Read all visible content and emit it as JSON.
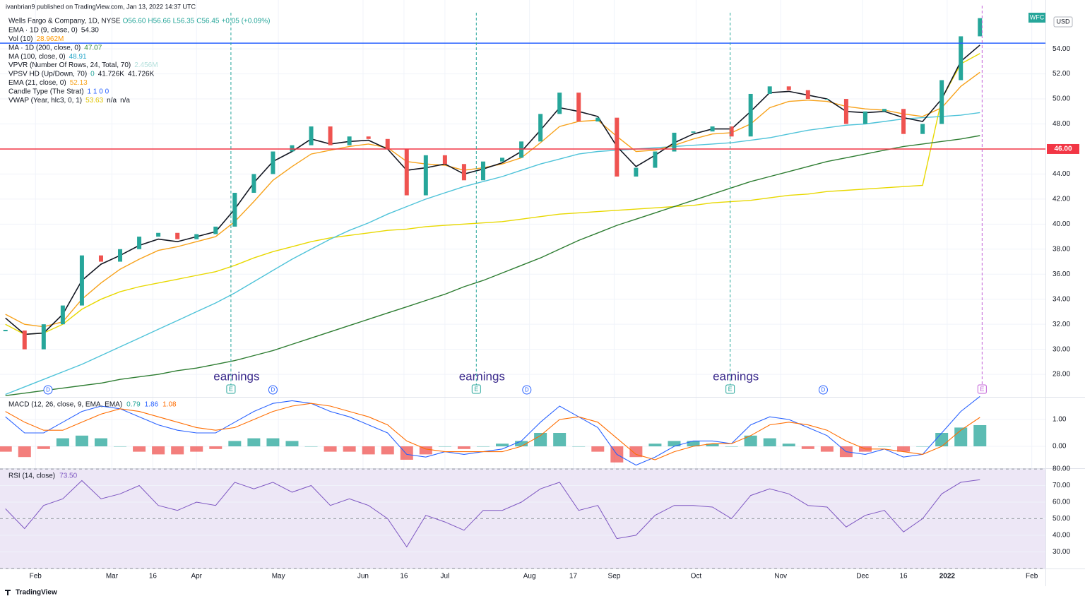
{
  "header": {
    "published": "ivanbrian9 published on TradingView.com, Jan 13, 2022 14:37 UTC",
    "footer": "TradingView"
  },
  "symbol": {
    "name": "Wells Fargo & Company, 1D, NYSE",
    "ohlc": [
      "O56.60",
      "H56.66",
      "L56.35",
      "C56.45",
      "+0.05 (+0.09%)"
    ],
    "ticker": "WFC",
    "currency": "USD"
  },
  "legend": [
    {
      "label": "EMA · 1D (9, close, 0)",
      "values": [
        "54.30"
      ],
      "color": "#131722"
    },
    {
      "label": "Vol (10)",
      "values": [
        "28.962M"
      ],
      "color": "#ff9800"
    },
    {
      "label": "MA · 1D (200, close, 0)",
      "values": [
        "47.07"
      ],
      "color": "#388e3c"
    },
    {
      "label": "MA (100, close, 0)",
      "values": [
        "48.91"
      ],
      "color": "#26a6c9"
    },
    {
      "label": "VPVR (Number Of Rows, 24, Total, 70)",
      "values": [
        "2.456M"
      ],
      "color": "#b2dfdb"
    },
    {
      "label": "VPSV HD (Up/Down, 70)",
      "values": [
        "0",
        "41.726K",
        "41.726K"
      ],
      "color": "#26a69a"
    },
    {
      "label": "EMA (21, close, 0)",
      "values": [
        "52.13"
      ],
      "color": "#f7a21b"
    },
    {
      "label": "Candle Type (The Strat)",
      "values": [
        "1 1 0 0"
      ],
      "color": "#2962ff"
    },
    {
      "label": "VWAP (Year, hlc3, 0, 1)",
      "values": [
        "53.63",
        "n/a",
        "n/a"
      ],
      "color": "#e0c400"
    }
  ],
  "chart_data": [
    {
      "type": "candlestick",
      "x": [
        20,
        27,
        34,
        41,
        48,
        55,
        62,
        69,
        76,
        83,
        90,
        97,
        104,
        111,
        118,
        125,
        132,
        139,
        146,
        153,
        160,
        167,
        174,
        181,
        188,
        195,
        202,
        209,
        216,
        223,
        230,
        237,
        244,
        251,
        258,
        265,
        272,
        279,
        286,
        293,
        300,
        307,
        314,
        321,
        328,
        335,
        342,
        349,
        356,
        363,
        370,
        377
      ],
      "values": [
        31.5,
        30.0,
        32.0,
        33.5,
        37.5,
        37.0,
        38.0,
        39.0,
        39.3,
        38.8,
        39.2,
        39.8,
        42.5,
        44.0,
        45.8,
        46.3,
        47.8,
        46.3,
        47.0,
        46.8,
        46.0,
        42.3,
        45.5,
        44.8,
        43.5,
        45.0,
        45.3,
        46.6,
        48.8,
        50.5,
        48.2,
        48.5,
        43.8,
        44.5,
        45.8,
        47.3,
        47.4,
        47.8,
        47.0,
        50.4,
        51.0,
        50.7,
        50.0,
        50.0,
        48.0,
        49.0,
        49.2,
        47.2,
        48.0,
        51.5,
        55.0,
        56.45
      ],
      "up_color": "#26a69a",
      "down_color": "#ef5350",
      "series": [
        {
          "color": "#e8d800",
          "values": [
            32.0,
            31.2,
            31.3,
            32.0,
            33.2,
            34.0,
            34.6,
            35.0,
            35.3,
            35.6,
            35.9,
            36.2,
            36.7,
            37.3,
            37.8,
            38.2,
            38.6,
            38.9,
            39.1,
            39.3,
            39.5,
            39.6,
            39.8,
            39.9,
            40.0,
            40.1,
            40.2,
            40.4,
            40.6,
            40.8,
            40.9,
            41.0,
            41.1,
            41.2,
            41.3,
            41.4,
            41.5,
            41.7,
            41.8,
            41.9,
            42.1,
            42.3,
            42.4,
            42.6,
            42.7,
            42.8,
            42.9,
            43.0,
            43.1,
            50.0,
            52.8,
            53.63
          ]
        },
        {
          "color": "#4fc3d9",
          "values": [
            26.4,
            27.0,
            27.6,
            28.2,
            28.8,
            29.5,
            30.2,
            30.9,
            31.6,
            32.3,
            33.0,
            33.7,
            34.5,
            35.4,
            36.3,
            37.2,
            38.0,
            38.8,
            39.5,
            40.1,
            40.8,
            41.4,
            42.0,
            42.5,
            43.0,
            43.4,
            43.8,
            44.3,
            44.8,
            45.2,
            45.6,
            45.8,
            45.9,
            46.0,
            46.1,
            46.2,
            46.3,
            46.4,
            46.5,
            46.7,
            46.9,
            47.2,
            47.5,
            47.7,
            47.9,
            48.0,
            48.2,
            48.4,
            48.5,
            48.6,
            48.7,
            48.91
          ]
        },
        {
          "color": "#2e7d32",
          "values": [
            26.3,
            26.5,
            26.7,
            26.9,
            27.1,
            27.3,
            27.6,
            27.8,
            28.0,
            28.3,
            28.5,
            28.8,
            29.1,
            29.5,
            29.9,
            30.4,
            30.9,
            31.4,
            31.9,
            32.4,
            32.9,
            33.4,
            33.9,
            34.4,
            35.0,
            35.5,
            36.1,
            36.7,
            37.3,
            38.0,
            38.7,
            39.3,
            39.9,
            40.4,
            40.9,
            41.4,
            41.9,
            42.4,
            42.9,
            43.4,
            43.8,
            44.2,
            44.6,
            45.0,
            45.3,
            45.6,
            45.9,
            46.2,
            46.4,
            46.6,
            46.8,
            47.07
          ]
        },
        {
          "color": "#f7a21b",
          "values": [
            32.8,
            32.0,
            31.8,
            32.2,
            34.0,
            35.3,
            36.4,
            37.2,
            37.9,
            38.2,
            38.6,
            39.0,
            40.2,
            41.8,
            43.5,
            44.6,
            45.6,
            45.9,
            46.2,
            46.4,
            46.1,
            45.0,
            44.8,
            44.7,
            44.3,
            44.5,
            44.8,
            45.3,
            46.5,
            47.8,
            48.2,
            48.3,
            47.0,
            45.8,
            45.9,
            46.3,
            46.8,
            47.2,
            47.3,
            48.0,
            49.3,
            49.8,
            49.9,
            49.8,
            49.4,
            49.2,
            49.1,
            48.8,
            48.6,
            49.3,
            51.0,
            52.13
          ]
        },
        {
          "color": "#131722",
          "values": [
            32.5,
            31.2,
            31.3,
            32.8,
            35.5,
            36.8,
            37.5,
            38.3,
            38.8,
            38.6,
            39.0,
            39.4,
            41.2,
            43.3,
            45.0,
            45.8,
            46.8,
            46.4,
            46.6,
            46.7,
            46.0,
            44.3,
            44.5,
            44.8,
            44.0,
            44.4,
            44.9,
            45.8,
            47.5,
            49.3,
            49.0,
            48.6,
            46.2,
            44.6,
            45.5,
            46.5,
            47.2,
            47.6,
            47.6,
            49.0,
            50.5,
            50.6,
            50.3,
            50.0,
            49.0,
            48.9,
            49.0,
            48.5,
            48.2,
            50.0,
            53.0,
            54.3
          ]
        }
      ],
      "xlim": [
        18,
        401
      ],
      "xticks": [
        {
          "value": 31,
          "label": "Feb"
        },
        {
          "value": 59,
          "label": "Mar"
        },
        {
          "value": 74,
          "label": "16"
        },
        {
          "value": 90,
          "label": "Apr"
        },
        {
          "value": 120,
          "label": "May"
        },
        {
          "value": 151,
          "label": "Jun"
        },
        {
          "value": 166,
          "label": "16"
        },
        {
          "value": 181,
          "label": "Jul"
        },
        {
          "value": 212,
          "label": "Aug"
        },
        {
          "value": 228,
          "label": "17"
        },
        {
          "value": 243,
          "label": "Sep"
        },
        {
          "value": 273,
          "label": "Oct"
        },
        {
          "value": 304,
          "label": "Nov"
        },
        {
          "value": 334,
          "label": "Dec"
        },
        {
          "value": 349,
          "label": "16"
        },
        {
          "value": 365,
          "label": "2022"
        },
        {
          "value": 396,
          "label": "Feb"
        }
      ],
      "ylim": [
        26.2,
        57.9
      ],
      "yticks": [
        {
          "value": 28,
          "label": "28.00"
        },
        {
          "value": 30,
          "label": "30.00"
        },
        {
          "value": 32,
          "label": "32.00"
        },
        {
          "value": 34,
          "label": "34.00"
        },
        {
          "value": 36,
          "label": "36.00"
        },
        {
          "value": 38,
          "label": "38.00"
        },
        {
          "value": 40,
          "label": "40.00"
        },
        {
          "value": 42,
          "label": "42.00"
        },
        {
          "value": 44,
          "label": "44.00"
        },
        {
          "value": 46,
          "label": "46.00"
        },
        {
          "value": 48,
          "label": "48.00"
        },
        {
          "value": 50,
          "label": "50.00"
        },
        {
          "value": 52,
          "label": "52.00"
        },
        {
          "value": 54,
          "label": "54.00"
        }
      ],
      "hlines": [
        {
          "value": 54.45,
          "color": "#2962ff"
        },
        {
          "value": 46,
          "color": "#f23645",
          "label": "46.00"
        }
      ],
      "earnings": [
        {
          "x": 102.6,
          "label": "earnings",
          "marker": "E"
        },
        {
          "x": 192.5,
          "label": "earnings",
          "marker": "E"
        },
        {
          "x": 285.5,
          "label": "earnings",
          "marker": "E"
        }
      ],
      "upcoming": {
        "x": 377.8,
        "marker": "E"
      },
      "dividends": [
        {
          "x": 35.6,
          "marker": "D"
        },
        {
          "x": 118,
          "marker": "D"
        },
        {
          "x": 211,
          "marker": "D"
        },
        {
          "x": 319.6,
          "marker": "D"
        }
      ]
    },
    {
      "type": "macd",
      "title": "MACD (12, 26, close, 9, EMA, EMA)",
      "legend_values": [
        "0.79",
        "1.86",
        "1.08"
      ],
      "legend_colors": [
        "#26a69a",
        "#2962ff",
        "#ff6d00"
      ],
      "x": [
        20,
        27,
        34,
        41,
        48,
        55,
        62,
        69,
        76,
        83,
        90,
        97,
        104,
        111,
        118,
        125,
        132,
        139,
        146,
        153,
        160,
        167,
        174,
        181,
        188,
        195,
        202,
        209,
        216,
        223,
        230,
        237,
        244,
        251,
        258,
        265,
        272,
        279,
        286,
        293,
        300,
        307,
        314,
        321,
        328,
        335,
        342,
        349,
        356,
        363,
        370,
        377
      ],
      "histogram": {
        "color": "#26a69a",
        "negative_color": "#ef5350",
        "values": [
          -0.2,
          -0.4,
          -0.1,
          0.3,
          0.4,
          0.3,
          0.0,
          -0.2,
          -0.3,
          -0.3,
          -0.2,
          -0.1,
          0.2,
          0.3,
          0.3,
          0.2,
          0.0,
          -0.2,
          -0.2,
          -0.3,
          -0.3,
          -0.5,
          -0.3,
          0.0,
          -0.1,
          0.0,
          0.1,
          0.2,
          0.5,
          0.5,
          0.0,
          -0.2,
          -0.6,
          -0.4,
          0.1,
          0.2,
          0.2,
          0.1,
          0.0,
          0.4,
          0.3,
          0.1,
          -0.1,
          -0.2,
          -0.4,
          -0.2,
          0.0,
          -0.2,
          0.0,
          0.5,
          0.7,
          0.79
        ]
      },
      "series": [
        {
          "color": "#2962ff",
          "values": [
            1.1,
            0.5,
            0.5,
            0.9,
            1.3,
            1.5,
            1.4,
            1.1,
            0.8,
            0.6,
            0.5,
            0.5,
            0.9,
            1.3,
            1.6,
            1.7,
            1.6,
            1.3,
            1.1,
            0.8,
            0.5,
            -0.3,
            -0.4,
            -0.2,
            -0.3,
            -0.2,
            -0.1,
            0.2,
            0.9,
            1.5,
            1.1,
            0.7,
            -0.3,
            -0.7,
            -0.4,
            0.0,
            0.2,
            0.2,
            0.1,
            0.8,
            1.1,
            1.0,
            0.7,
            0.4,
            -0.2,
            -0.3,
            -0.1,
            -0.4,
            -0.3,
            0.5,
            1.3,
            1.86
          ]
        },
        {
          "color": "#ff6d00",
          "values": [
            1.3,
            0.9,
            0.6,
            0.6,
            0.9,
            1.2,
            1.4,
            1.3,
            1.1,
            0.9,
            0.7,
            0.6,
            0.7,
            1.0,
            1.3,
            1.5,
            1.6,
            1.5,
            1.3,
            1.1,
            0.8,
            0.2,
            -0.1,
            -0.2,
            -0.2,
            -0.2,
            -0.2,
            0.0,
            0.4,
            1.0,
            1.1,
            0.9,
            0.3,
            -0.3,
            -0.5,
            -0.2,
            0.0,
            0.1,
            0.1,
            0.4,
            0.8,
            0.9,
            0.8,
            0.6,
            0.2,
            -0.1,
            -0.1,
            -0.2,
            -0.3,
            0.0,
            0.6,
            1.08
          ]
        }
      ],
      "ylim": [
        -0.816,
        1.816
      ],
      "yticks": [
        {
          "value": 0,
          "label": "0.00"
        },
        {
          "value": 1,
          "label": "1.00"
        }
      ]
    },
    {
      "type": "rsi",
      "title": "RSI (14, close)",
      "legend_values": [
        "73.50"
      ],
      "legend_colors": [
        "#7e57c2"
      ],
      "x": [
        20,
        27,
        34,
        41,
        48,
        55,
        62,
        69,
        76,
        83,
        90,
        97,
        104,
        111,
        118,
        125,
        132,
        139,
        146,
        153,
        160,
        167,
        174,
        181,
        188,
        195,
        202,
        209,
        216,
        223,
        230,
        237,
        244,
        251,
        258,
        265,
        272,
        279,
        286,
        293,
        300,
        307,
        314,
        321,
        328,
        335,
        342,
        349,
        356,
        363,
        370,
        377
      ],
      "series": [
        {
          "color": "#7e57c2",
          "values": [
            56,
            44,
            58,
            62,
            73,
            62,
            65,
            70,
            58,
            55,
            60,
            58,
            72,
            68,
            72,
            66,
            70,
            58,
            62,
            58,
            50,
            33,
            52,
            48,
            43,
            55,
            55,
            60,
            68,
            72,
            55,
            58,
            38,
            40,
            52,
            58,
            58,
            57,
            50,
            64,
            68,
            65,
            58,
            57,
            45,
            52,
            55,
            42,
            50,
            65,
            72,
            73.5
          ]
        }
      ],
      "band": [
        20,
        80
      ],
      "midline": 50,
      "band_color": "#ede7f6",
      "ylim": [
        19.9,
        80.04
      ],
      "yticks": [
        {
          "value": 30,
          "label": "30.00"
        },
        {
          "value": 40,
          "label": "40.00"
        },
        {
          "value": 50,
          "label": "50.00"
        },
        {
          "value": 60,
          "label": "60.00"
        },
        {
          "value": 70,
          "label": "70.00"
        },
        {
          "value": 80,
          "label": "80.00"
        }
      ]
    }
  ]
}
